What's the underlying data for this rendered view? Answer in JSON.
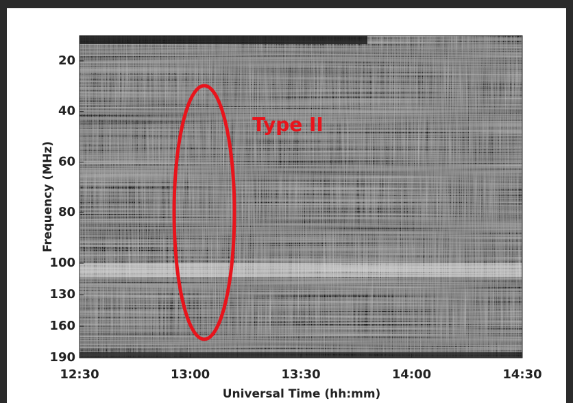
{
  "chart_data": {
    "type": "spectrogram",
    "xlabel": "Universal Time (hh:mm)",
    "ylabel": "Frequency (MHz)",
    "xlim": [
      "12:30",
      "14:30"
    ],
    "xticks": [
      "12:30",
      "13:00",
      "13:30",
      "14:00",
      "14:30"
    ],
    "ylim": [
      10,
      190
    ],
    "yticks": [
      20,
      40,
      60,
      80,
      100,
      130,
      160,
      190
    ],
    "ybreak": 100,
    "annotation": {
      "text": "Type II",
      "color": "#e8141c"
    }
  }
}
